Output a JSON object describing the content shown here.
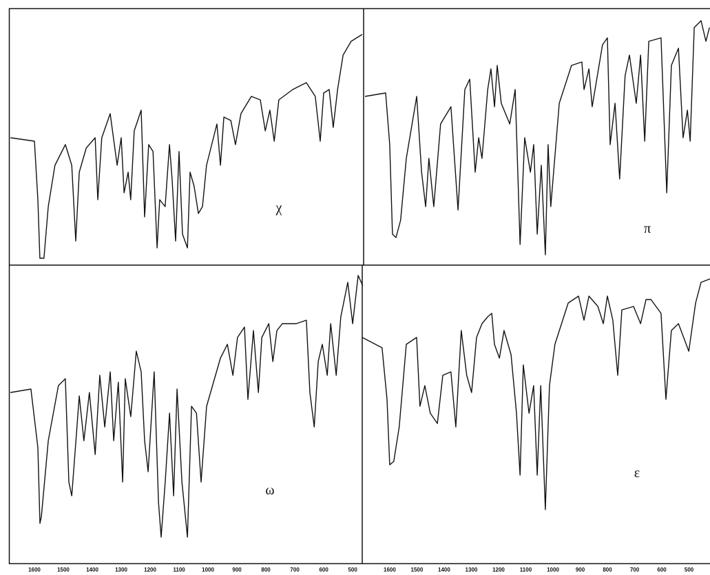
{
  "chart_data": [
    {
      "type": "line",
      "annotation": "χ",
      "color": "#111",
      "xlim": [
        1688,
        462
      ],
      "ylim": [
        0,
        373
      ],
      "x": [
        1683,
        1600,
        1588,
        1581,
        1567,
        1552,
        1529,
        1493,
        1471,
        1457,
        1445,
        1421,
        1390,
        1381,
        1367,
        1338,
        1314,
        1300,
        1290,
        1276,
        1267,
        1255,
        1231,
        1219,
        1205,
        1190,
        1176,
        1167,
        1148,
        1133,
        1124,
        1112,
        1100,
        1088,
        1071,
        1062,
        1048,
        1033,
        1019,
        1005,
        969,
        957,
        945,
        921,
        905,
        886,
        850,
        819,
        802,
        786,
        771,
        755,
        707,
        660,
        629,
        612,
        600,
        581,
        567,
        552,
        533,
        505,
        467
      ],
      "values": [
        185,
        180,
        95,
        10,
        10,
        85,
        145,
        175,
        145,
        35,
        135,
        170,
        185,
        95,
        185,
        220,
        145,
        185,
        105,
        135,
        95,
        195,
        225,
        70,
        175,
        165,
        25,
        95,
        85,
        175,
        125,
        35,
        165,
        45,
        25,
        135,
        115,
        75,
        85,
        145,
        205,
        145,
        215,
        210,
        175,
        220,
        245,
        240,
        195,
        225,
        180,
        240,
        255,
        265,
        245,
        180,
        250,
        255,
        200,
        255,
        305,
        325,
        335
      ]
    },
    {
      "type": "line",
      "annotation": "π",
      "color": "#111",
      "xlim": [
        1696,
        423
      ],
      "ylim": [
        0,
        373
      ],
      "x": [
        1691,
        1615,
        1600,
        1590,
        1577,
        1560,
        1539,
        1501,
        1483,
        1468,
        1456,
        1438,
        1413,
        1375,
        1349,
        1324,
        1306,
        1286,
        1273,
        1261,
        1240,
        1228,
        1215,
        1205,
        1190,
        1159,
        1139,
        1121,
        1104,
        1083,
        1071,
        1058,
        1043,
        1028,
        1018,
        1008,
        977,
        932,
        894,
        886,
        868,
        856,
        818,
        800,
        790,
        772,
        755,
        735,
        719,
        694,
        678,
        663,
        648,
        603,
        582,
        565,
        539,
        522,
        506,
        496,
        481,
        456,
        438,
        425
      ],
      "values": [
        245,
        250,
        175,
        45,
        40,
        65,
        155,
        245,
        135,
        85,
        155,
        85,
        205,
        230,
        80,
        255,
        270,
        135,
        185,
        155,
        255,
        285,
        230,
        290,
        235,
        205,
        255,
        30,
        185,
        135,
        175,
        45,
        145,
        15,
        175,
        85,
        235,
        290,
        295,
        255,
        285,
        230,
        320,
        330,
        175,
        235,
        125,
        275,
        305,
        235,
        305,
        180,
        325,
        330,
        105,
        290,
        315,
        185,
        225,
        180,
        345,
        355,
        325,
        345
      ]
    },
    {
      "type": "line",
      "annotation": "ω",
      "color": "#111",
      "xlim": [
        1688,
        467
      ],
      "ylim": [
        0,
        433
      ],
      "x": [
        1683,
        1612,
        1588,
        1581,
        1576,
        1552,
        1517,
        1493,
        1481,
        1471,
        1462,
        1445,
        1429,
        1410,
        1390,
        1374,
        1357,
        1338,
        1326,
        1310,
        1295,
        1286,
        1267,
        1248,
        1231,
        1219,
        1207,
        1186,
        1171,
        1162,
        1148,
        1133,
        1119,
        1107,
        1090,
        1071,
        1057,
        1040,
        1024,
        1005,
        957,
        933,
        914,
        898,
        874,
        862,
        843,
        826,
        814,
        790,
        776,
        762,
        743,
        695,
        660,
        648,
        633,
        619,
        605,
        588,
        576,
        557,
        541,
        517,
        500,
        481,
        465
      ],
      "values": [
        248,
        253,
        168,
        58,
        68,
        178,
        258,
        268,
        118,
        98,
        148,
        243,
        178,
        248,
        158,
        273,
        198,
        278,
        178,
        263,
        118,
        268,
        213,
        308,
        278,
        178,
        133,
        278,
        88,
        38,
        118,
        218,
        98,
        253,
        118,
        38,
        228,
        218,
        118,
        228,
        298,
        318,
        273,
        328,
        343,
        238,
        338,
        248,
        328,
        348,
        293,
        338,
        348,
        348,
        353,
        248,
        198,
        293,
        318,
        273,
        348,
        273,
        358,
        408,
        348,
        418,
        403
      ],
      "xticks": [
        1600,
        1500,
        1400,
        1300,
        1200,
        1100,
        1000,
        900,
        800,
        700,
        600,
        500
      ]
    },
    {
      "type": "line",
      "annotation": "ε",
      "color": "#111",
      "xlim": [
        1701,
        423
      ],
      "ylim": [
        0,
        433
      ],
      "x": [
        1701,
        1628,
        1610,
        1600,
        1585,
        1565,
        1539,
        1501,
        1489,
        1471,
        1451,
        1425,
        1405,
        1375,
        1357,
        1337,
        1317,
        1299,
        1281,
        1261,
        1240,
        1225,
        1215,
        1197,
        1180,
        1154,
        1134,
        1121,
        1109,
        1088,
        1071,
        1058,
        1045,
        1028,
        1013,
        993,
        944,
        906,
        886,
        868,
        835,
        815,
        800,
        780,
        762,
        747,
        704,
        678,
        658,
        640,
        603,
        585,
        565,
        539,
        501,
        476,
        456,
        423
      ],
      "values": [
        328,
        313,
        238,
        143,
        148,
        198,
        318,
        328,
        228,
        258,
        218,
        203,
        273,
        278,
        198,
        338,
        273,
        248,
        328,
        348,
        358,
        363,
        318,
        298,
        338,
        303,
        218,
        128,
        288,
        218,
        258,
        128,
        258,
        78,
        258,
        318,
        378,
        388,
        353,
        388,
        373,
        348,
        388,
        353,
        273,
        368,
        373,
        348,
        383,
        383,
        363,
        238,
        338,
        348,
        308,
        378,
        408,
        413
      ],
      "xticks": [
        1600,
        1500,
        1400,
        1300,
        1200,
        1100,
        1000,
        900,
        800,
        700,
        600,
        500
      ]
    }
  ]
}
